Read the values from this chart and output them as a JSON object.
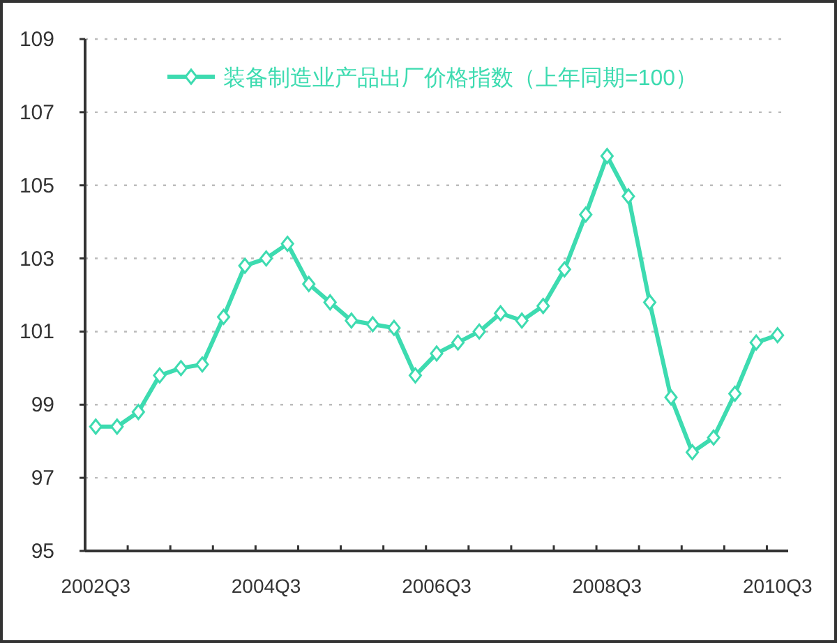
{
  "chart_data": {
    "type": "line",
    "categories": [
      "2002Q3",
      null,
      null,
      null,
      null,
      null,
      null,
      null,
      "2004Q3",
      null,
      null,
      null,
      null,
      null,
      null,
      null,
      "2006Q3",
      null,
      null,
      null,
      null,
      null,
      null,
      null,
      "2008Q3",
      null,
      null,
      null,
      null,
      null,
      null,
      null,
      "2010Q3"
    ],
    "series": [
      {
        "name": "装备制造业产品出厂价格指数（上年同期=100）",
        "color": "#3ddbb0",
        "values": [
          98.4,
          98.4,
          98.8,
          99.8,
          100.0,
          100.1,
          101.4,
          102.8,
          103.0,
          103.4,
          102.3,
          101.8,
          101.3,
          101.2,
          101.1,
          99.8,
          100.4,
          100.7,
          101.0,
          101.5,
          101.3,
          101.7,
          102.7,
          104.2,
          105.8,
          104.7,
          101.8,
          99.2,
          97.7,
          98.1,
          99.3,
          100.7,
          100.9
        ]
      }
    ],
    "ylim": [
      95,
      109
    ],
    "yticks": [
      95,
      97,
      99,
      101,
      103,
      105,
      107,
      109
    ],
    "grid": "y",
    "legend": "top",
    "marker": "diamond",
    "line_style": "solid"
  }
}
